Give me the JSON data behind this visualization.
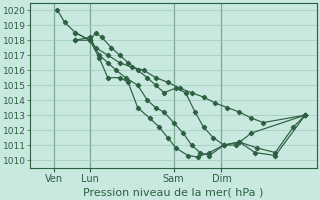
{
  "xlabel_label": "Pression niveau de la mer( hPa )",
  "ylim": [
    1009.5,
    1020.5
  ],
  "yticks": [
    1010,
    1011,
    1012,
    1013,
    1014,
    1015,
    1016,
    1017,
    1018,
    1019,
    1020
  ],
  "bg_color": "#c8e8e0",
  "grid_color": "#a0c8bc",
  "line_color": "#2d6040",
  "marker": "D",
  "markersize": 2.2,
  "linewidth": 0.85,
  "xtick_labels": [
    "Ven",
    "Lun",
    "Sam",
    "Dim"
  ],
  "xlabel_fontsize": 8,
  "xtick_fontsize": 7,
  "ytick_fontsize": 6.5,
  "xlim": [
    -2,
    22
  ],
  "ven_x": 0,
  "lun_x": 3,
  "sam_x": 10,
  "dim_x": 14,
  "series1_x": [
    0.3,
    0.9,
    1.8,
    3.0,
    3.5,
    4.5,
    5.5,
    6.5,
    7.5,
    8.5,
    9.5,
    10.5,
    11.5,
    12.5,
    13.5,
    14.5,
    15.5,
    16.5,
    17.5,
    21.0
  ],
  "series1_y": [
    1020.0,
    1019.2,
    1018.5,
    1018.0,
    1017.5,
    1017.0,
    1016.5,
    1016.2,
    1016.0,
    1015.5,
    1015.2,
    1014.8,
    1014.5,
    1014.2,
    1013.8,
    1013.5,
    1013.2,
    1012.8,
    1012.5,
    1013.0
  ],
  "series2_x": [
    1.8,
    3.0,
    3.5,
    4.0,
    4.8,
    5.5,
    6.2,
    7.0,
    7.8,
    8.5,
    9.2,
    10.2,
    11.0,
    11.8,
    12.5,
    13.3,
    14.2,
    15.2,
    16.5,
    21.0
  ],
  "series2_y": [
    1018.5,
    1018.0,
    1018.5,
    1018.2,
    1017.5,
    1017.0,
    1016.5,
    1016.0,
    1015.5,
    1015.0,
    1014.5,
    1014.8,
    1014.5,
    1013.2,
    1012.2,
    1011.5,
    1011.0,
    1011.0,
    1011.8,
    1013.0
  ],
  "series3_x": [
    1.8,
    3.0,
    3.8,
    4.5,
    5.2,
    6.0,
    7.0,
    7.8,
    8.5,
    9.2,
    10.0,
    10.8,
    11.5,
    12.2,
    13.0,
    14.2,
    15.5,
    16.8,
    18.5,
    21.0
  ],
  "series3_y": [
    1018.0,
    1018.2,
    1017.0,
    1016.5,
    1016.0,
    1015.5,
    1015.0,
    1014.0,
    1013.5,
    1013.2,
    1012.5,
    1011.8,
    1011.0,
    1010.5,
    1010.3,
    1011.0,
    1011.2,
    1010.5,
    1010.3,
    1013.0
  ],
  "series4_x": [
    1.8,
    3.0,
    3.8,
    4.5,
    5.5,
    6.2,
    7.0,
    8.0,
    8.8,
    9.5,
    10.2,
    11.2,
    12.0,
    13.0,
    14.2,
    15.5,
    17.0,
    18.5,
    20.0,
    21.0
  ],
  "series4_y": [
    1018.0,
    1018.0,
    1016.8,
    1015.5,
    1015.5,
    1015.2,
    1013.5,
    1012.8,
    1012.2,
    1011.5,
    1010.8,
    1010.3,
    1010.2,
    1010.5,
    1011.0,
    1011.2,
    1010.8,
    1010.5,
    1012.2,
    1013.0
  ]
}
